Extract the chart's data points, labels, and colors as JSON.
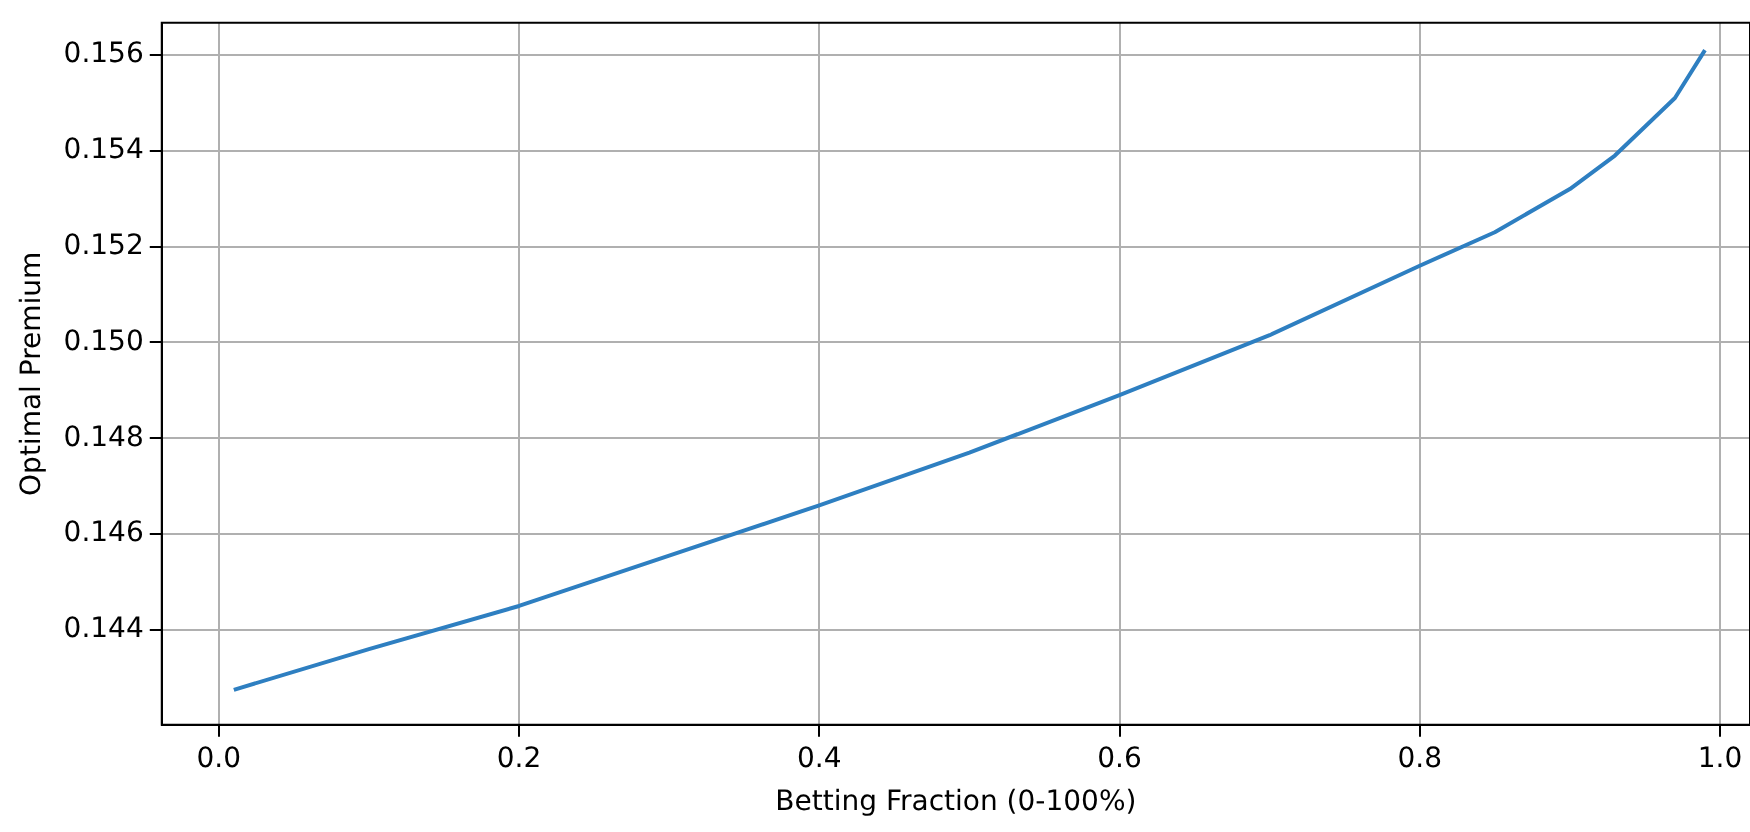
{
  "chart_data": {
    "type": "line",
    "xlabel": "Betting Fraction (0-100%)",
    "ylabel": "Optimal Premium",
    "series": [
      {
        "color": "#2e7fc1",
        "x": [
          0.01,
          0.1,
          0.2,
          0.3,
          0.4,
          0.5,
          0.6,
          0.7,
          0.8,
          0.85,
          0.9,
          0.93,
          0.95,
          0.97,
          0.99
        ],
        "values": [
          0.14275,
          0.1436,
          0.1445,
          0.14555,
          0.1466,
          0.1477,
          0.1489,
          0.15015,
          0.1516,
          0.1523,
          0.1532,
          0.1539,
          0.1545,
          0.1551,
          0.1561
        ]
      }
    ],
    "xlim": [
      -0.038,
      1.02
    ],
    "ylim": [
      0.14202,
      0.15667
    ],
    "xticks": [
      {
        "value": 0,
        "label": "0.0"
      },
      {
        "value": 0.2,
        "label": "0.2"
      },
      {
        "value": 0.4,
        "label": "0.4"
      },
      {
        "value": 0.6,
        "label": "0.6"
      },
      {
        "value": 0.8,
        "label": "0.8"
      },
      {
        "value": 1.0,
        "label": "1.0"
      }
    ],
    "yticks": [
      0.144,
      0.146,
      0.148,
      {
        "value": 0.15,
        "label": "0.150"
      },
      0.152,
      0.154,
      0.156
    ],
    "grid": true,
    "legend": false,
    "marker": "none",
    "line_style": "solid"
  }
}
